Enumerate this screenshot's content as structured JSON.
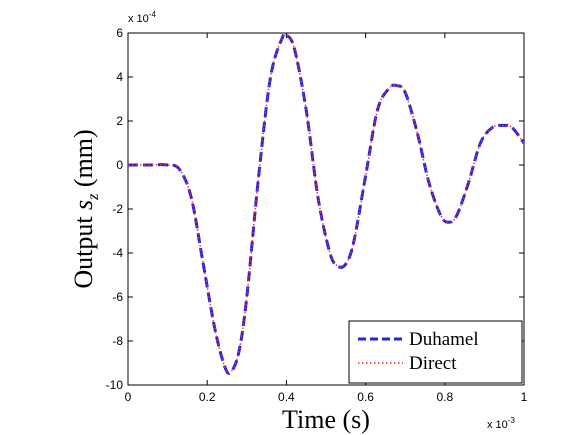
{
  "chart_data": {
    "type": "line",
    "xlabel": "Time (s)",
    "ylabel_text": "Output ",
    "ylabel_symbol": "s",
    "ylabel_subscript": "z",
    "ylabel_unit": " (mm)",
    "x_exponent_label": "x 10",
    "x_exponent_power": "-3",
    "y_exponent_label": "x 10",
    "y_exponent_power": "-4",
    "xlim": [
      0,
      0.001
    ],
    "ylim": [
      -0.001,
      0.0006
    ],
    "x_ticks": [
      0,
      0.0002,
      0.0004,
      0.0006,
      0.0008,
      0.001
    ],
    "x_tick_labels": [
      "0",
      "0.2",
      "0.4",
      "0.6",
      "0.8",
      "1"
    ],
    "y_ticks": [
      -0.001,
      -0.0008,
      -0.0006,
      -0.0004,
      -0.0002,
      0,
      0.0002,
      0.0004,
      0.0006
    ],
    "y_tick_labels": [
      "-10",
      "-8",
      "-6",
      "-4",
      "-2",
      "0",
      "2",
      "4",
      "6"
    ],
    "grid": false,
    "legend_position": "bottom-right",
    "x": [
      0,
      5e-05,
      0.0001,
      0.00013,
      0.00016,
      0.00019,
      0.00022,
      0.000245,
      0.00026,
      0.00028,
      0.0003,
      0.00033,
      0.00036,
      0.00039,
      0.0004,
      0.00042,
      0.00045,
      0.00048,
      0.00051,
      0.00053,
      0.00055,
      0.00057,
      0.0006,
      0.00063,
      0.00066,
      0.00068,
      0.0007,
      0.00073,
      0.00076,
      0.00079,
      0.00081,
      0.00083,
      0.00086,
      0.00089,
      0.00092,
      0.00095,
      0.00097,
      0.001
    ],
    "series": [
      {
        "name": "Duhamel",
        "color": "#2424e0",
        "style": "dashed",
        "values": [
          0,
          0,
          0,
          -2e-05,
          -0.00015,
          -0.00045,
          -0.00075,
          -0.00092,
          -0.00094,
          -0.00085,
          -0.0006,
          -5e-05,
          0.0004,
          0.00058,
          0.00059,
          0.00053,
          0.00025,
          -0.00015,
          -0.0004,
          -0.00046,
          -0.00045,
          -0.00035,
          -5e-05,
          0.00025,
          0.00035,
          0.00036,
          0.00033,
          0.00015,
          -8e-05,
          -0.00023,
          -0.00026,
          -0.00023,
          -8e-05,
          0.0001,
          0.00017,
          0.00018,
          0.00017,
          0.0001
        ]
      },
      {
        "name": "Direct",
        "color": "#f03030",
        "style": "dotted",
        "values": [
          0,
          0,
          0,
          -2e-05,
          -0.00015,
          -0.00045,
          -0.00075,
          -0.00092,
          -0.00094,
          -0.00085,
          -0.0006,
          -5e-05,
          0.0004,
          0.00058,
          0.00059,
          0.00053,
          0.00025,
          -0.00015,
          -0.0004,
          -0.00046,
          -0.00045,
          -0.00035,
          -5e-05,
          0.00025,
          0.00035,
          0.00036,
          0.00033,
          0.00015,
          -8e-05,
          -0.00023,
          -0.00026,
          -0.00023,
          -8e-05,
          0.0001,
          0.00017,
          0.00018,
          0.00017,
          0.0001
        ]
      }
    ]
  }
}
